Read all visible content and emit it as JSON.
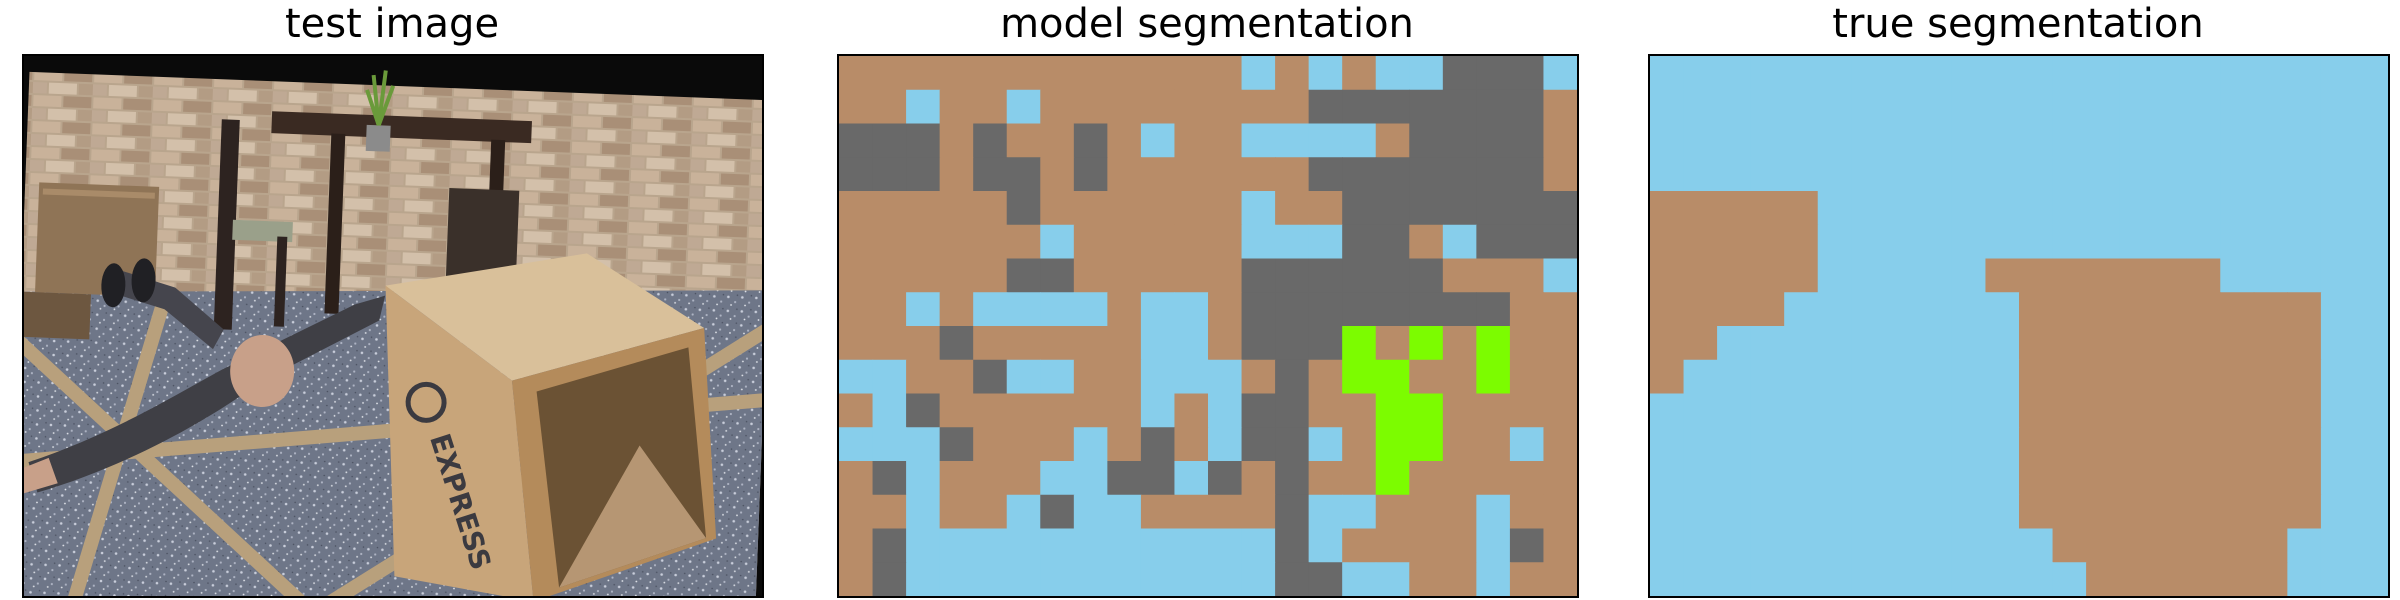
{
  "panels": {
    "test": {
      "title": "test image"
    },
    "model": {
      "title": "model segmentation"
    },
    "true": {
      "title": "true segmentation"
    }
  },
  "palette": {
    "brown": "#b88c68",
    "blue": "#87ceeb",
    "gray": "#696969",
    "green": "#7cfc00"
  },
  "model_segmentation": {
    "rows": 16,
    "cols": 22,
    "legend": "B=brown, L=blue, G=gray, N=green",
    "grid": [
      "BBBBBBBBBBBBLBLBLLGGGL",
      "BBLBBLBBBBBBBBGGGGGGGB",
      "GGGBGBBGBLBBLLLLBGGGGB",
      "GGGBGGBGBBBBBBGGGGGGGB",
      "BBBBBGBBBBBBLBBGGGGGGG",
      "BBBBBBLBBBBBLLLGGBLGGG",
      "BBBBBGGBBBBBGGGGGGBBBL",
      "BBLBLLLLBLLBGGGGGGGGBB",
      "BBBGBBBBBLLBGGGNBNBNBB",
      "LLBBGLLBBLLLBGBNNBBNBB",
      "BLGBBBBBBLBLGGBBNNBBBB",
      "LLLGBBBLBGBLGGLBNNBBLB",
      "BGLBBBLLGGLGBGBBNBBBBB",
      "BBLBBLGLLBBBBGLLBBBLBB",
      "BGLLLLLLLLLLLGLBBBBLGB",
      "BGLLLLLLLLLLLGGLLBBLBB"
    ]
  },
  "true_segmentation": {
    "rows": 16,
    "cols": 22,
    "legend": "B=brown, L=blue",
    "grid": [
      "LLLLLLLLLLLLLLLLLLLLLL",
      "LLLLLLLLLLLLLLLLLLLLLL",
      "LLLLLLLLLLLLLLLLLLLLLL",
      "LLLLLLLLLLLLLLLLLLLLLL",
      "BBBBBLLLLLLLLLLLLLLLLL",
      "BBBBBLLLLLLLLLLLLLLLLL",
      "BBBBBLLLLLBBBBBBBLLLLL",
      "BBBBLLLLLLLBBBBBBBBBLL",
      "BBLLLLLLLLLBBBBBBBBBLL",
      "BLLLLLLLLLLBBBBBBBBBLL",
      "LLLLLLLLLLLBBBBBBBBBLL",
      "LLLLLLLLLLLBBBBBBBBBLL",
      "LLLLLLLLLLLBBBBBBBBBLL",
      "LLLLLLLLLLLBBBBBBBBBLL",
      "LLLLLLLLLLLLBBBBBBBLLL",
      "LLLLLLLLLLLLLBBBBBBLLL"
    ]
  }
}
